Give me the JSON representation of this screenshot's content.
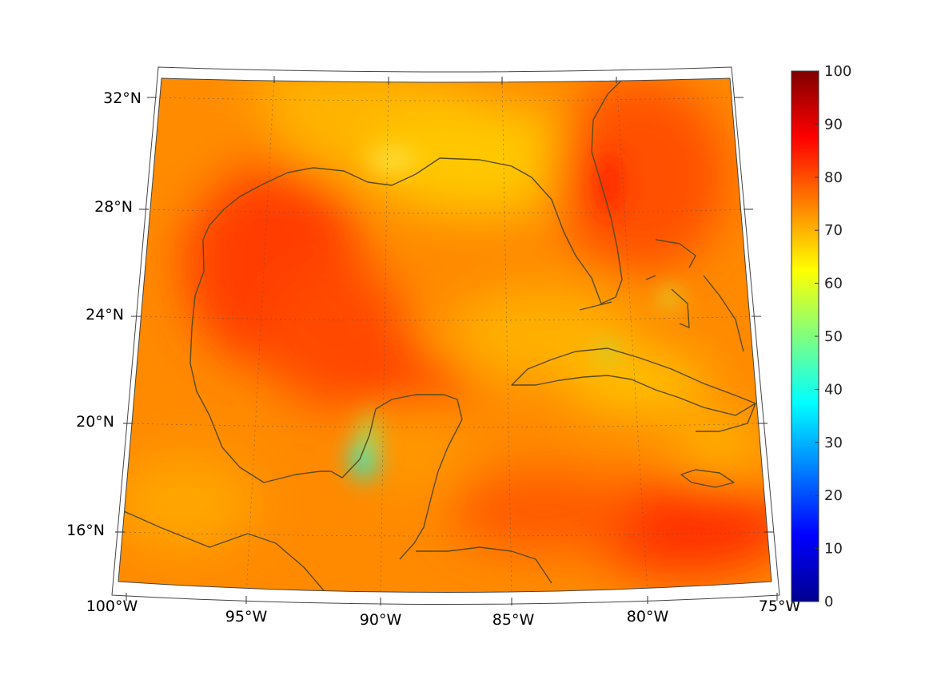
{
  "map": {
    "lon_labels": [
      "100°W",
      "95°W",
      "90°W",
      "85°W",
      "80°W",
      "75°W"
    ],
    "lat_labels": [
      "32°N",
      "28°N",
      "24°N",
      "20°N",
      "16°N"
    ],
    "colors": {
      "ocean_base": "#ff8c00",
      "land_base": "#ffa500",
      "coastline": "#5a4a1e",
      "hot_region": "#ff3a00",
      "warm_region": "#ffd000",
      "cool_spot": "#00d4c0"
    }
  },
  "colorbar": {
    "ticks": [
      "100",
      "90",
      "80",
      "70",
      "60",
      "50",
      "40",
      "30",
      "20",
      "10",
      "0"
    ],
    "min": 0,
    "max": 100,
    "colormap": "jet"
  }
}
